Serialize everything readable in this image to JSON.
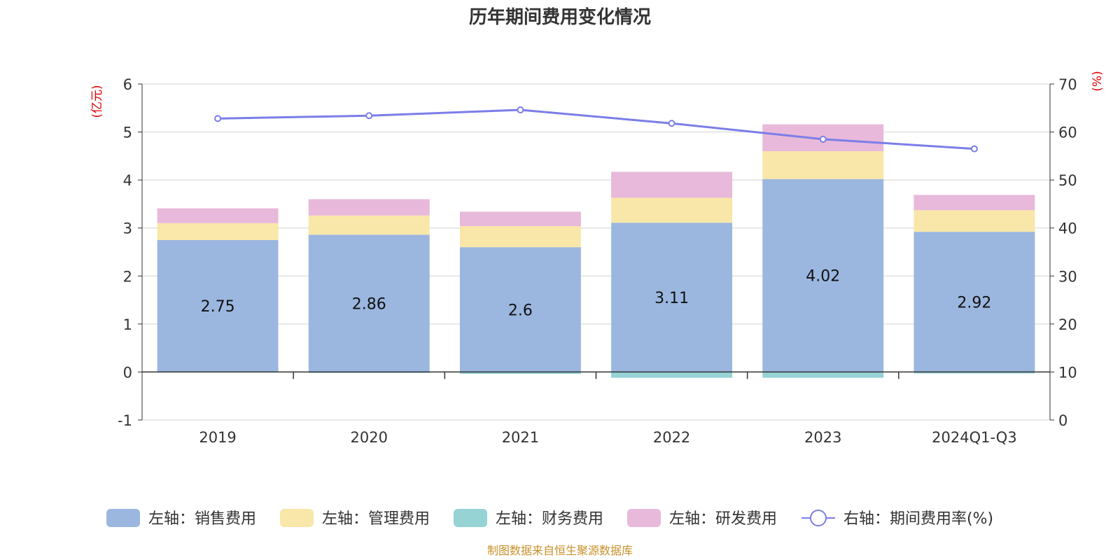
{
  "chart_data": {
    "type": "bar",
    "title": "历年期间费用变化情况",
    "categories": [
      "2019",
      "2020",
      "2021",
      "2022",
      "2023",
      "2024Q1-Q3"
    ],
    "left_axis": {
      "unit_label": "(亿元)",
      "ylim": [
        -1,
        6
      ],
      "ticks": [
        6,
        5,
        4,
        3,
        2,
        1,
        0,
        -1
      ]
    },
    "right_axis": {
      "unit_label": "(%)",
      "ylim": [
        0,
        70
      ],
      "ticks": [
        70,
        60,
        50,
        40,
        30,
        20,
        10,
        0
      ]
    },
    "series": [
      {
        "name": "销售费用",
        "legend": "左轴：销售费用",
        "axis": "left",
        "kind": "bar",
        "color": "#9bb7e0",
        "values": [
          2.75,
          2.86,
          2.6,
          3.11,
          4.02,
          2.92
        ]
      },
      {
        "name": "管理费用",
        "legend": "左轴：管理费用",
        "axis": "left",
        "kind": "bar",
        "color": "#f8e7a8",
        "values": [
          0.35,
          0.4,
          0.44,
          0.52,
          0.58,
          0.45
        ]
      },
      {
        "name": "财务费用",
        "legend": "左轴：财务费用",
        "axis": "left",
        "kind": "bar",
        "color": "#95d3d5",
        "values": [
          -0.01,
          -0.02,
          -0.04,
          -0.12,
          -0.12,
          -0.03
        ]
      },
      {
        "name": "研发费用",
        "legend": "左轴：研发费用",
        "axis": "left",
        "kind": "bar",
        "color": "#e8b9da",
        "values": [
          0.31,
          0.34,
          0.3,
          0.54,
          0.56,
          0.32
        ]
      },
      {
        "name": "期间费用率(%)",
        "legend": "右轴：期间费用率(%)",
        "axis": "right",
        "kind": "line",
        "color": "#7b7ee8",
        "values": [
          62.8,
          63.4,
          64.6,
          61.8,
          58.5,
          56.5
        ]
      }
    ],
    "data_labels_series": "销售费用",
    "grid": true,
    "legend_position": "bottom"
  },
  "source": "制图数据来自恒生聚源数据库"
}
